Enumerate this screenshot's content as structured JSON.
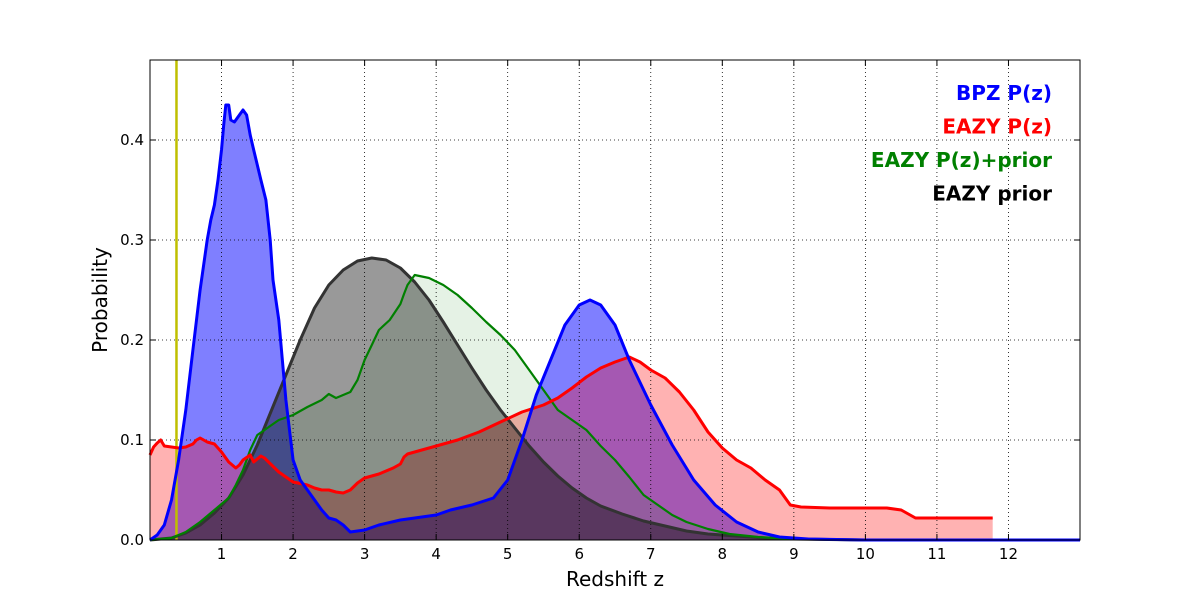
{
  "chart_data": {
    "type": "area",
    "xlabel": "Redshift z",
    "ylabel": "Probability",
    "xlim": [
      0,
      13
    ],
    "ylim": [
      0,
      0.48
    ],
    "grid": true,
    "legend_placement": "top-right",
    "x_ticks": [
      1,
      2,
      3,
      4,
      5,
      6,
      7,
      8,
      9,
      10,
      11,
      12
    ],
    "y_ticks": [
      0.0,
      0.1,
      0.2,
      0.3,
      0.4
    ],
    "y_tick_labels": [
      "0.0",
      "0.1",
      "0.2",
      "0.3",
      "0.4"
    ],
    "vertical_line": {
      "x": 0.37,
      "color": "#bfbf00"
    },
    "series": [
      {
        "name": "BPZ P(z)",
        "color": "#0000ff",
        "fill": "#0000ff",
        "fill_opacity": 0.5,
        "filled": true,
        "points": [
          [
            0,
            0
          ],
          [
            0.1,
            0.005
          ],
          [
            0.2,
            0.015
          ],
          [
            0.3,
            0.04
          ],
          [
            0.4,
            0.08
          ],
          [
            0.5,
            0.13
          ],
          [
            0.6,
            0.19
          ],
          [
            0.7,
            0.25
          ],
          [
            0.8,
            0.3
          ],
          [
            0.85,
            0.32
          ],
          [
            0.9,
            0.335
          ],
          [
            0.95,
            0.36
          ],
          [
            1.0,
            0.39
          ],
          [
            1.03,
            0.415
          ],
          [
            1.06,
            0.435
          ],
          [
            1.1,
            0.435
          ],
          [
            1.13,
            0.42
          ],
          [
            1.18,
            0.418
          ],
          [
            1.25,
            0.425
          ],
          [
            1.3,
            0.43
          ],
          [
            1.35,
            0.425
          ],
          [
            1.4,
            0.405
          ],
          [
            1.45,
            0.39
          ],
          [
            1.55,
            0.36
          ],
          [
            1.62,
            0.34
          ],
          [
            1.68,
            0.3
          ],
          [
            1.72,
            0.26
          ],
          [
            1.8,
            0.22
          ],
          [
            1.9,
            0.14
          ],
          [
            2.0,
            0.08
          ],
          [
            2.1,
            0.06
          ],
          [
            2.2,
            0.05
          ],
          [
            2.4,
            0.03
          ],
          [
            2.5,
            0.022
          ],
          [
            2.6,
            0.02
          ],
          [
            2.7,
            0.015
          ],
          [
            2.8,
            0.008
          ],
          [
            3.0,
            0.01
          ],
          [
            3.2,
            0.015
          ],
          [
            3.5,
            0.02
          ],
          [
            4.0,
            0.025
          ],
          [
            4.2,
            0.03
          ],
          [
            4.5,
            0.035
          ],
          [
            4.8,
            0.042
          ],
          [
            5.0,
            0.06
          ],
          [
            5.2,
            0.1
          ],
          [
            5.4,
            0.145
          ],
          [
            5.6,
            0.18
          ],
          [
            5.8,
            0.215
          ],
          [
            6.0,
            0.235
          ],
          [
            6.15,
            0.24
          ],
          [
            6.3,
            0.235
          ],
          [
            6.5,
            0.215
          ],
          [
            6.7,
            0.18
          ],
          [
            7.0,
            0.135
          ],
          [
            7.3,
            0.095
          ],
          [
            7.6,
            0.06
          ],
          [
            7.9,
            0.035
          ],
          [
            8.2,
            0.018
          ],
          [
            8.5,
            0.008
          ],
          [
            8.8,
            0.003
          ],
          [
            9.2,
            0.001
          ],
          [
            10,
            0
          ],
          [
            13,
            0
          ]
        ]
      },
      {
        "name": "EAZY P(z)",
        "color": "#ff0000",
        "fill": "#ff0000",
        "fill_opacity": 0.3,
        "filled": true,
        "points": [
          [
            0,
            0.085
          ],
          [
            0.05,
            0.093
          ],
          [
            0.1,
            0.097
          ],
          [
            0.15,
            0.1
          ],
          [
            0.2,
            0.094
          ],
          [
            0.3,
            0.093
          ],
          [
            0.4,
            0.092
          ],
          [
            0.5,
            0.093
          ],
          [
            0.6,
            0.096
          ],
          [
            0.65,
            0.1
          ],
          [
            0.7,
            0.102
          ],
          [
            0.8,
            0.098
          ],
          [
            0.9,
            0.096
          ],
          [
            1.0,
            0.088
          ],
          [
            1.1,
            0.078
          ],
          [
            1.2,
            0.072
          ],
          [
            1.25,
            0.075
          ],
          [
            1.3,
            0.08
          ],
          [
            1.4,
            0.085
          ],
          [
            1.45,
            0.078
          ],
          [
            1.55,
            0.084
          ],
          [
            1.6,
            0.082
          ],
          [
            1.7,
            0.075
          ],
          [
            1.8,
            0.068
          ],
          [
            1.9,
            0.063
          ],
          [
            2.0,
            0.058
          ],
          [
            2.2,
            0.055
          ],
          [
            2.3,
            0.052
          ],
          [
            2.4,
            0.05
          ],
          [
            2.5,
            0.05
          ],
          [
            2.6,
            0.048
          ],
          [
            2.7,
            0.047
          ],
          [
            2.8,
            0.05
          ],
          [
            2.9,
            0.057
          ],
          [
            3.0,
            0.062
          ],
          [
            3.2,
            0.066
          ],
          [
            3.4,
            0.072
          ],
          [
            3.5,
            0.076
          ],
          [
            3.55,
            0.083
          ],
          [
            3.6,
            0.086
          ],
          [
            3.8,
            0.09
          ],
          [
            4.0,
            0.094
          ],
          [
            4.3,
            0.1
          ],
          [
            4.6,
            0.108
          ],
          [
            4.9,
            0.118
          ],
          [
            5.2,
            0.128
          ],
          [
            5.5,
            0.135
          ],
          [
            5.7,
            0.142
          ],
          [
            5.9,
            0.152
          ],
          [
            6.1,
            0.163
          ],
          [
            6.3,
            0.172
          ],
          [
            6.5,
            0.178
          ],
          [
            6.7,
            0.183
          ],
          [
            6.85,
            0.178
          ],
          [
            7.0,
            0.17
          ],
          [
            7.2,
            0.162
          ],
          [
            7.4,
            0.148
          ],
          [
            7.6,
            0.13
          ],
          [
            7.8,
            0.108
          ],
          [
            8.0,
            0.092
          ],
          [
            8.2,
            0.08
          ],
          [
            8.4,
            0.072
          ],
          [
            8.6,
            0.06
          ],
          [
            8.8,
            0.05
          ],
          [
            8.95,
            0.035
          ],
          [
            9.1,
            0.033
          ],
          [
            9.5,
            0.032
          ],
          [
            10.0,
            0.032
          ],
          [
            10.3,
            0.032
          ],
          [
            10.5,
            0.03
          ],
          [
            10.7,
            0.022
          ],
          [
            11.0,
            0.022
          ],
          [
            11.5,
            0.022
          ],
          [
            11.78,
            0.022
          ]
        ]
      },
      {
        "name": "EAZY P(z)+prior",
        "color": "#008000",
        "fill": "#008000",
        "fill_opacity": 0.1,
        "filled": true,
        "points": [
          [
            0,
            0
          ],
          [
            0.3,
            0.002
          ],
          [
            0.5,
            0.008
          ],
          [
            0.7,
            0.018
          ],
          [
            0.9,
            0.03
          ],
          [
            1.0,
            0.036
          ],
          [
            1.1,
            0.042
          ],
          [
            1.2,
            0.055
          ],
          [
            1.3,
            0.07
          ],
          [
            1.4,
            0.09
          ],
          [
            1.5,
            0.105
          ],
          [
            1.6,
            0.11
          ],
          [
            1.7,
            0.115
          ],
          [
            1.8,
            0.12
          ],
          [
            2.0,
            0.125
          ],
          [
            2.2,
            0.133
          ],
          [
            2.4,
            0.14
          ],
          [
            2.5,
            0.146
          ],
          [
            2.6,
            0.142
          ],
          [
            2.8,
            0.148
          ],
          [
            2.9,
            0.16
          ],
          [
            3.0,
            0.18
          ],
          [
            3.1,
            0.195
          ],
          [
            3.2,
            0.21
          ],
          [
            3.35,
            0.22
          ],
          [
            3.5,
            0.236
          ],
          [
            3.55,
            0.246
          ],
          [
            3.6,
            0.255
          ],
          [
            3.7,
            0.265
          ],
          [
            3.9,
            0.262
          ],
          [
            4.1,
            0.255
          ],
          [
            4.3,
            0.245
          ],
          [
            4.5,
            0.232
          ],
          [
            4.7,
            0.218
          ],
          [
            4.9,
            0.205
          ],
          [
            5.1,
            0.19
          ],
          [
            5.3,
            0.17
          ],
          [
            5.5,
            0.15
          ],
          [
            5.7,
            0.13
          ],
          [
            5.9,
            0.12
          ],
          [
            6.1,
            0.11
          ],
          [
            6.3,
            0.094
          ],
          [
            6.5,
            0.08
          ],
          [
            6.7,
            0.063
          ],
          [
            6.9,
            0.045
          ],
          [
            7.1,
            0.035
          ],
          [
            7.3,
            0.025
          ],
          [
            7.5,
            0.018
          ],
          [
            7.8,
            0.011
          ],
          [
            8.1,
            0.006
          ],
          [
            8.5,
            0.003
          ],
          [
            9.0,
            0.001
          ],
          [
            10.0,
            0
          ],
          [
            13,
            0
          ]
        ]
      },
      {
        "name": "EAZY prior",
        "color": "#000000",
        "fill": "#000000",
        "fill_opacity": 0.4,
        "filled": true,
        "points": [
          [
            0,
            0
          ],
          [
            0.3,
            0.002
          ],
          [
            0.5,
            0.007
          ],
          [
            0.7,
            0.015
          ],
          [
            0.9,
            0.027
          ],
          [
            1.1,
            0.042
          ],
          [
            1.3,
            0.065
          ],
          [
            1.5,
            0.095
          ],
          [
            1.7,
            0.13
          ],
          [
            1.9,
            0.165
          ],
          [
            2.1,
            0.2
          ],
          [
            2.3,
            0.232
          ],
          [
            2.5,
            0.255
          ],
          [
            2.7,
            0.27
          ],
          [
            2.9,
            0.279
          ],
          [
            3.1,
            0.282
          ],
          [
            3.3,
            0.28
          ],
          [
            3.5,
            0.272
          ],
          [
            3.7,
            0.258
          ],
          [
            3.9,
            0.24
          ],
          [
            4.1,
            0.218
          ],
          [
            4.3,
            0.195
          ],
          [
            4.5,
            0.172
          ],
          [
            4.7,
            0.15
          ],
          [
            4.9,
            0.13
          ],
          [
            5.1,
            0.112
          ],
          [
            5.3,
            0.094
          ],
          [
            5.5,
            0.078
          ],
          [
            5.7,
            0.064
          ],
          [
            5.9,
            0.052
          ],
          [
            6.1,
            0.042
          ],
          [
            6.3,
            0.034
          ],
          [
            6.6,
            0.026
          ],
          [
            6.9,
            0.019
          ],
          [
            7.2,
            0.014
          ],
          [
            7.5,
            0.009
          ],
          [
            7.8,
            0.006
          ],
          [
            8.2,
            0.004
          ],
          [
            8.6,
            0.002
          ],
          [
            9.0,
            0.001
          ],
          [
            10.0,
            0
          ],
          [
            13,
            0
          ]
        ]
      }
    ]
  }
}
